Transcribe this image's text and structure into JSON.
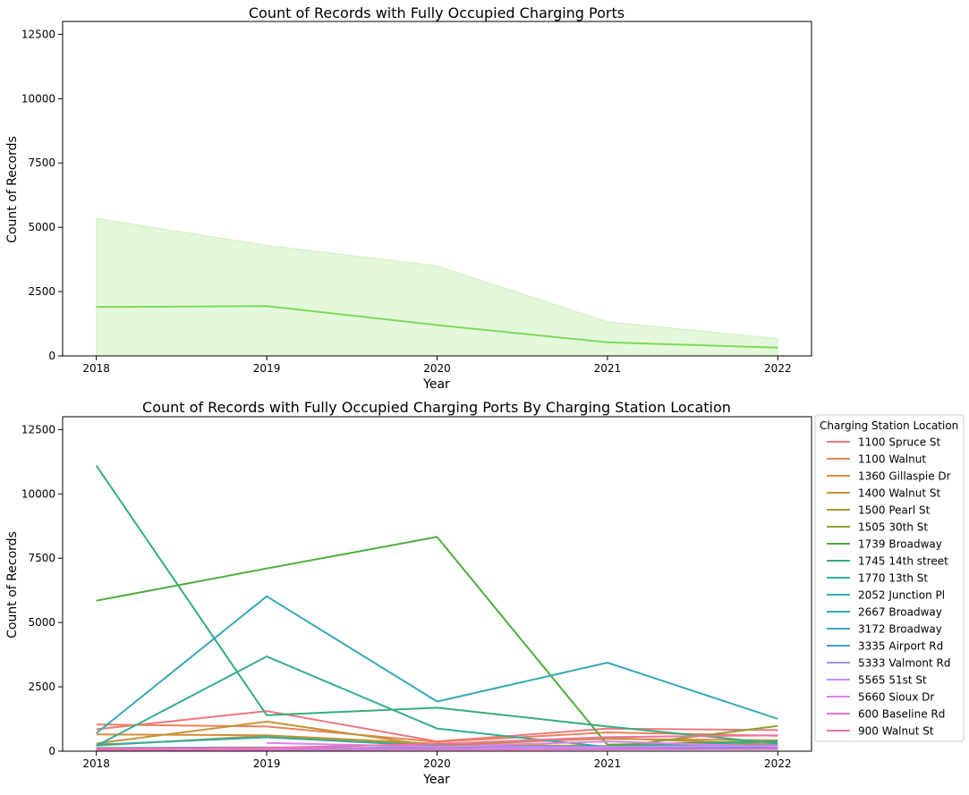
{
  "chart_data": [
    {
      "type": "area",
      "title": "Count of Records with Fully Occupied Charging Ports",
      "xlabel": "Year",
      "ylabel": "Count of Records",
      "x": [
        2018,
        2019,
        2020,
        2021,
        2022
      ],
      "ylim": [
        0,
        13000
      ],
      "yticks": [
        0,
        2500,
        5000,
        7500,
        10000,
        12500
      ],
      "grid": false,
      "series": [
        {
          "values": [
            1900,
            1940,
            1200,
            530,
            320
          ],
          "band_lower": [
            0,
            0,
            0,
            0,
            0
          ],
          "band_upper": [
            5350,
            4300,
            3500,
            1330,
            680
          ],
          "color": "#7ed957"
        }
      ]
    },
    {
      "type": "line",
      "title": "Count of Records with Fully Occupied Charging Ports By Charging Station Location",
      "xlabel": "Year",
      "ylabel": "Count of Records",
      "x": [
        2018,
        2019,
        2020,
        2021,
        2022
      ],
      "ylim": [
        0,
        13000
      ],
      "yticks": [
        0,
        2500,
        5000,
        7500,
        10000,
        12500
      ],
      "grid": false,
      "legend_title": "Charging Station Location",
      "legend_position": "outside right",
      "series": [
        {
          "name": "1100 Spruce St",
          "color": "#f07780",
          "values": [
            850,
            1560,
            380,
            880,
            820
          ]
        },
        {
          "name": "1100 Walnut",
          "color": "#ec8255",
          "values": [
            1040,
            960,
            360,
            730,
            600
          ]
        },
        {
          "name": "1360 Gillaspie Dr",
          "color": "#d88c3c",
          "values": [
            650,
            620,
            290,
            480,
            420
          ]
        },
        {
          "name": "1400 Walnut St",
          "color": "#c39538",
          "values": [
            300,
            1150,
            190,
            520,
            250
          ]
        },
        {
          "name": "1500 Pearl St",
          "color": "#a89b36",
          "values": [
            220,
            600,
            260,
            200,
            260
          ]
        },
        {
          "name": "1505 30th St",
          "color": "#8ba335",
          "values": [
            60,
            80,
            120,
            140,
            980
          ]
        },
        {
          "name": "1739 Broadway",
          "color": "#4fae3c",
          "values": [
            5850,
            7100,
            8330,
            250,
            390
          ]
        },
        {
          "name": "1745 14th street",
          "color": "#34ae7a",
          "values": [
            11100,
            1400,
            1690,
            960,
            300
          ]
        },
        {
          "name": "1770 13th St",
          "color": "#33ad95",
          "values": [
            210,
            3680,
            880,
            160,
            380
          ]
        },
        {
          "name": "2052 Junction Pl",
          "color": "#35aaa3",
          "values": [
            250,
            540,
            200,
            90,
            170
          ]
        },
        {
          "name": "2667 Broadway",
          "color": "#37a9b4",
          "values": [
            700,
            6020,
            1930,
            3440,
            1260
          ]
        },
        {
          "name": "3172 Broadway",
          "color": "#3aa6c4",
          "values": [
            120,
            150,
            100,
            130,
            140
          ]
        },
        {
          "name": "3335 Airport Rd",
          "color": "#3fa0d6",
          "values": [
            80,
            110,
            90,
            100,
            120
          ]
        },
        {
          "name": "5333 Valmont Rd",
          "color": "#a190f0",
          "values": [
            40,
            70,
            180,
            170,
            230
          ]
        },
        {
          "name": "5565 51st St",
          "color": "#c58ef2",
          "values": [
            20,
            40,
            80,
            150,
            200
          ]
        },
        {
          "name": "5660 Sioux Dr",
          "color": "#e37ff0",
          "values": [
            null,
            320,
            170,
            380,
            170
          ]
        },
        {
          "name": "600 Baseline Rd",
          "color": "#ef72cc",
          "values": [
            30,
            60,
            60,
            70,
            80
          ]
        },
        {
          "name": "900 Walnut St",
          "color": "#f171a6",
          "values": [
            90,
            130,
            280,
            550,
            620
          ]
        }
      ]
    }
  ]
}
